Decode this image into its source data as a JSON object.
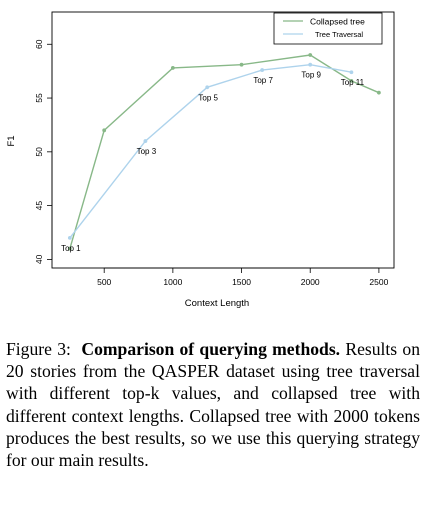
{
  "chart_data": {
    "type": "line",
    "xlabel": "Context Length",
    "ylabel": "F1",
    "xlim": [
      120,
      2610
    ],
    "ylim": [
      39.2,
      63.0
    ],
    "x_ticks": [
      "500",
      "1000",
      "1500",
      "2000",
      "2500"
    ],
    "y_ticks": [
      "40",
      "45",
      "50",
      "55",
      "60"
    ],
    "grid": false,
    "legend_position": "top-right",
    "series": [
      {
        "name": "Collapsed tree",
        "color": "#88b888",
        "points": [
          {
            "x": 250,
            "y": 41.0
          },
          {
            "x": 500,
            "y": 52.0
          },
          {
            "x": 1000,
            "y": 57.8
          },
          {
            "x": 1500,
            "y": 58.1
          },
          {
            "x": 2000,
            "y": 59.0
          },
          {
            "x": 2300,
            "y": 56.6
          },
          {
            "x": 2500,
            "y": 55.5
          }
        ]
      },
      {
        "name": "Tree Traversal",
        "color": "#aed3ec",
        "points": [
          {
            "x": 250,
            "y": 42.0,
            "label": "Top 1"
          },
          {
            "x": 800,
            "y": 51.0,
            "label": "Top 3"
          },
          {
            "x": 1250,
            "y": 56.0,
            "label": "Top 5"
          },
          {
            "x": 1650,
            "y": 57.6,
            "label": "Top 7"
          },
          {
            "x": 2000,
            "y": 58.1,
            "label": "Top 9"
          },
          {
            "x": 2300,
            "y": 57.4,
            "label": "Top 11"
          }
        ]
      }
    ]
  },
  "caption": {
    "lead": "Figure 3:",
    "bold": "Comparison of querying methods.",
    "body": "Results on 20 stories from the QASPER dataset using tree traversal with different top-k values, and collapsed tree with different context lengths. Collapsed tree with 2000 tokens produces the best results, so we use this querying strategy for our main results."
  }
}
